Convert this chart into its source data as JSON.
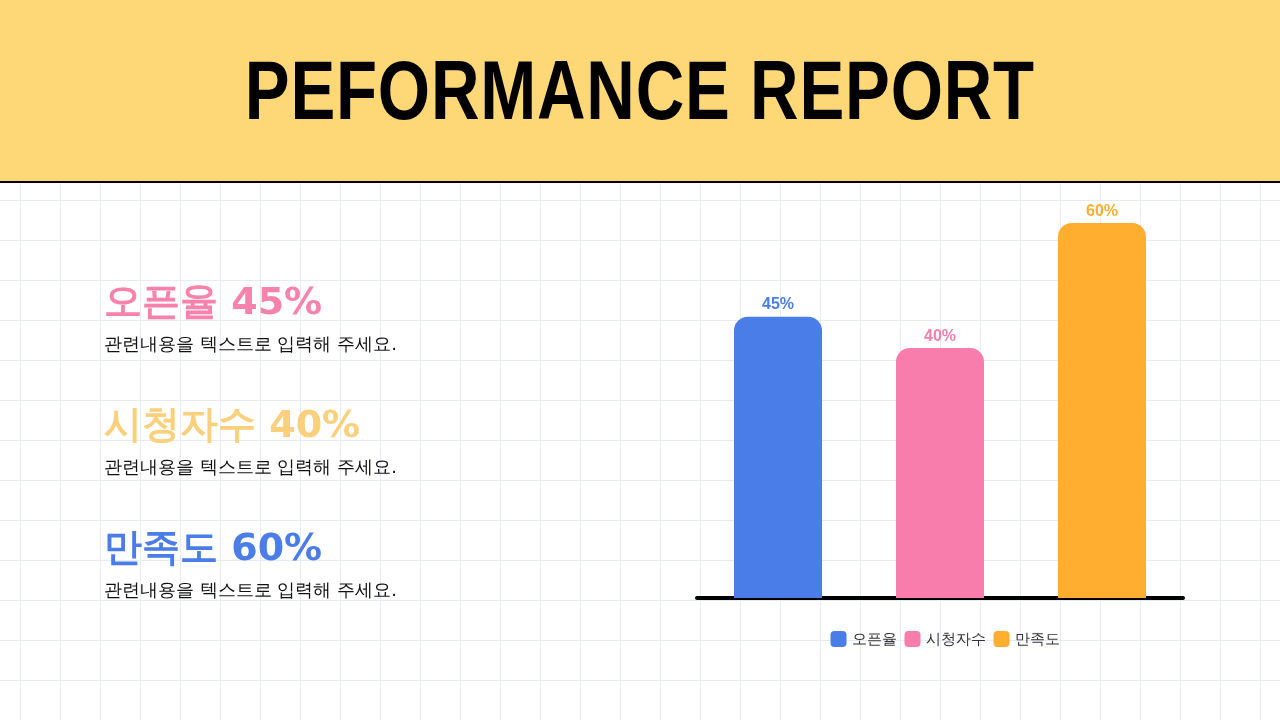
{
  "chart_data": {
    "type": "bar",
    "title": "PEFORMANCE REPORT",
    "stacked": true,
    "categories": [
      null,
      null,
      null
    ],
    "series": [
      {
        "name": "오픈율",
        "color": "#4a7de8",
        "values": [
          45,
          null,
          null
        ],
        "value_labels": [
          "45%",
          null,
          null
        ]
      },
      {
        "name": "시청자수",
        "color": "#f87dac",
        "values": [
          null,
          40,
          null
        ],
        "value_labels": [
          null,
          "40%",
          null
        ]
      },
      {
        "name": "만족도",
        "color": "#ffae2f",
        "values": [
          null,
          null,
          60
        ],
        "value_labels": [
          null,
          null,
          "60%"
        ]
      }
    ],
    "annotations": [
      "오픈율 45%",
      "관련내용을 텍스트로 입력해 주세요.",
      "시청자수 40%",
      "관련내용을 텍스트로 입력해 주세요.",
      "만족도 60%",
      "관련내용을 텍스트로 입력해 주세요."
    ],
    "legend": "bottom",
    "grid": false
  }
}
